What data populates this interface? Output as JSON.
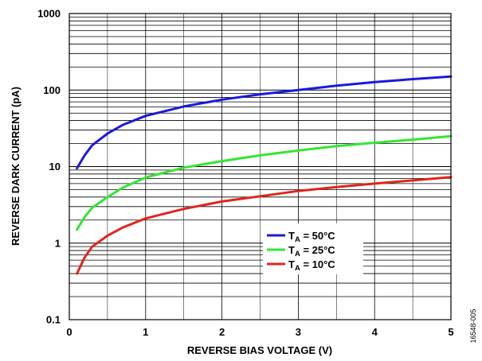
{
  "chart_data": {
    "type": "line",
    "xlabel": "REVERSE BIAS VOLTAGE (V)",
    "ylabel": "REVERSE DARK CURRENT (pA)",
    "xlim": [
      0,
      5
    ],
    "ylim": [
      0.1,
      1000
    ],
    "yscale": "log",
    "grid": true,
    "legend_position": "lower-right",
    "x_ticks": [
      "0",
      "1",
      "2",
      "3",
      "4",
      "5"
    ],
    "y_ticks": [
      "0.1",
      "1",
      "10",
      "100",
      "1000"
    ],
    "series": [
      {
        "name": "T_A = 50°C",
        "legend_main": "T",
        "legend_sub": "A",
        "legend_rest": " = 50°C",
        "color": "#1a1adc",
        "x": [
          0.1,
          0.2,
          0.3,
          0.5,
          0.7,
          1.0,
          1.5,
          2.0,
          2.5,
          3.0,
          3.5,
          4.0,
          4.5,
          5.0
        ],
        "y": [
          9.5,
          14,
          19,
          27,
          35,
          46,
          61,
          75,
          88,
          100,
          114,
          127,
          139,
          150
        ]
      },
      {
        "name": "T_A = 25°C",
        "legend_main": "T",
        "legend_sub": "A",
        "legend_rest": " = 25°C",
        "color": "#33e633",
        "x": [
          0.1,
          0.2,
          0.3,
          0.5,
          0.7,
          1.0,
          1.5,
          2.0,
          2.5,
          3.0,
          3.5,
          4.0,
          4.5,
          5.0
        ],
        "y": [
          1.5,
          2.2,
          2.9,
          4.0,
          5.3,
          7.2,
          9.7,
          11.8,
          14,
          16.2,
          18.5,
          20.5,
          22.5,
          25
        ]
      },
      {
        "name": "T_A = 10°C",
        "legend_main": "T",
        "legend_sub": "A",
        "legend_rest": " = 10°C",
        "color": "#e0251e",
        "x": [
          0.1,
          0.2,
          0.3,
          0.5,
          0.7,
          1.0,
          1.5,
          2.0,
          2.5,
          3.0,
          3.5,
          4.0,
          4.5,
          5.0
        ],
        "y": [
          0.4,
          0.65,
          0.9,
          1.25,
          1.6,
          2.1,
          2.8,
          3.5,
          4.1,
          4.8,
          5.4,
          6.0,
          6.6,
          7.3
        ]
      }
    ]
  },
  "figure_id": "16548-005"
}
